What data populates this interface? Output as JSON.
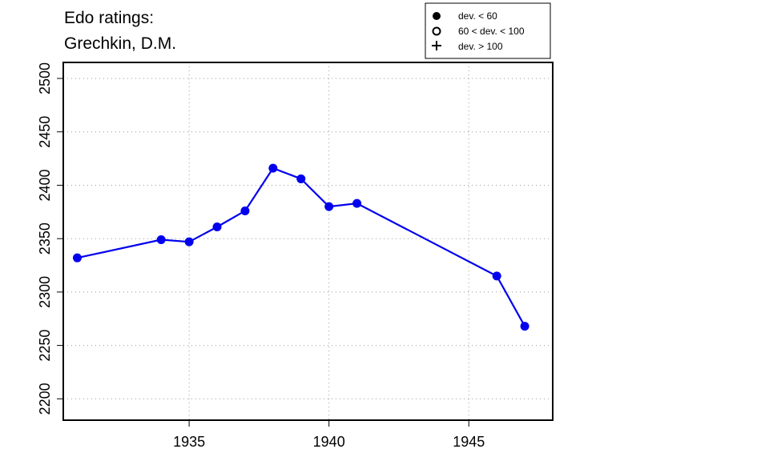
{
  "chart_data": {
    "type": "line",
    "title_lines": [
      "Edo ratings:",
      "Grechkin, D.M."
    ],
    "xlabel": "",
    "ylabel": "",
    "xlim": [
      1930.5,
      1948.0
    ],
    "ylim": [
      2180,
      2515
    ],
    "x_ticks": [
      1935,
      1940,
      1945
    ],
    "y_ticks": [
      2200,
      2250,
      2300,
      2350,
      2400,
      2450,
      2500
    ],
    "grid": true,
    "series": [
      {
        "color": "#0000ee",
        "marker": "filled-circle",
        "points": [
          {
            "x": 1931,
            "y": 2332
          },
          {
            "x": 1934,
            "y": 2349
          },
          {
            "x": 1935,
            "y": 2347
          },
          {
            "x": 1936,
            "y": 2361
          },
          {
            "x": 1937,
            "y": 2376
          },
          {
            "x": 1938,
            "y": 2416
          },
          {
            "x": 1939,
            "y": 2406
          },
          {
            "x": 1940,
            "y": 2380
          },
          {
            "x": 1941,
            "y": 2383
          },
          {
            "x": 1946,
            "y": 2315
          },
          {
            "x": 1947,
            "y": 2268
          }
        ]
      }
    ],
    "legend": {
      "position": "top-right",
      "entries": [
        {
          "symbol": "filled-circle",
          "label": "dev. < 60"
        },
        {
          "symbol": "open-circle",
          "label": "60 < dev. < 100"
        },
        {
          "symbol": "plus",
          "label": "dev. > 100"
        }
      ]
    }
  }
}
